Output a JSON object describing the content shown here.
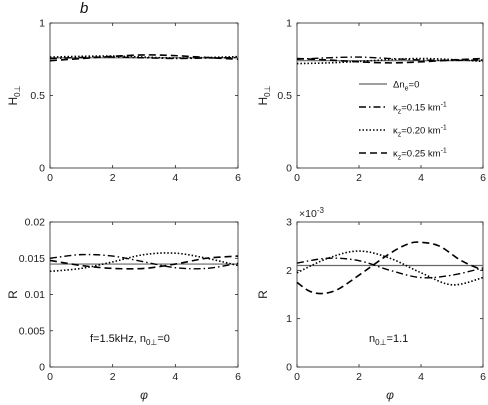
{
  "figure_label": "b",
  "chart_data": [
    {
      "type": "line",
      "id": "top-left",
      "ylabel": "H",
      "ylabel_sub": "0⊥",
      "xlim": [
        0,
        6
      ],
      "ylim": [
        0,
        1
      ],
      "xticks": [
        "0",
        "2",
        "4",
        "6"
      ],
      "yticks": [
        "0",
        "0.5",
        "1"
      ],
      "series": [
        {
          "style": "solid",
          "x": [
            0,
            1,
            2,
            3,
            4,
            5,
            6
          ],
          "y": [
            0.76,
            0.76,
            0.76,
            0.76,
            0.76,
            0.76,
            0.76
          ]
        },
        {
          "style": "dashdot",
          "x": [
            0,
            1,
            2,
            3,
            4,
            5,
            6
          ],
          "y": [
            0.755,
            0.762,
            0.765,
            0.76,
            0.755,
            0.758,
            0.762
          ]
        },
        {
          "style": "dotted",
          "x": [
            0,
            1,
            2,
            3,
            4,
            5,
            6
          ],
          "y": [
            0.765,
            0.77,
            0.772,
            0.765,
            0.758,
            0.762,
            0.768
          ]
        },
        {
          "style": "dashed",
          "x": [
            0,
            1,
            2,
            3,
            4,
            5,
            6
          ],
          "y": [
            0.74,
            0.755,
            0.77,
            0.78,
            0.775,
            0.762,
            0.75
          ]
        }
      ]
    },
    {
      "type": "line",
      "id": "top-right",
      "ylabel": "H",
      "ylabel_sub": "0⊥",
      "xlim": [
        0,
        6
      ],
      "ylim": [
        0,
        1
      ],
      "xticks": [
        "0",
        "2",
        "4",
        "6"
      ],
      "yticks": [
        "0",
        "0.5",
        "1"
      ],
      "legend": {
        "placement": "right",
        "entries": [
          {
            "style": "solid",
            "pre": "Δn",
            "sub": "e",
            "post": "=0",
            "sup": ""
          },
          {
            "style": "dashdot",
            "pre": "κ",
            "sub": "z",
            "post": "=0.15 km",
            "sup": "-1"
          },
          {
            "style": "dotted",
            "pre": "κ",
            "sub": "z",
            "post": "=0.20 km",
            "sup": "-1"
          },
          {
            "style": "dashed",
            "pre": "κ",
            "sub": "z",
            "post": "=0.25 km",
            "sup": "-1"
          }
        ]
      },
      "series": [
        {
          "style": "solid",
          "x": [
            0,
            1,
            2,
            3,
            4,
            5,
            6
          ],
          "y": [
            0.74,
            0.74,
            0.74,
            0.74,
            0.74,
            0.74,
            0.74
          ]
        },
        {
          "style": "dashdot",
          "x": [
            0,
            1,
            2,
            3,
            4,
            5,
            6
          ],
          "y": [
            0.75,
            0.76,
            0.765,
            0.755,
            0.745,
            0.742,
            0.745
          ]
        },
        {
          "style": "dotted",
          "x": [
            0,
            1,
            2,
            3,
            4,
            5,
            6
          ],
          "y": [
            0.72,
            0.725,
            0.735,
            0.748,
            0.755,
            0.748,
            0.735
          ]
        },
        {
          "style": "dashed",
          "x": [
            0,
            1,
            2,
            3,
            4,
            5,
            6
          ],
          "y": [
            0.755,
            0.745,
            0.732,
            0.725,
            0.732,
            0.745,
            0.755
          ]
        }
      ]
    },
    {
      "type": "line",
      "id": "bottom-left",
      "ylabel": "R",
      "xlabel": "φ",
      "xlim": [
        0,
        6
      ],
      "ylim": [
        0,
        0.02
      ],
      "xticks": [
        "0",
        "2",
        "4",
        "6"
      ],
      "yticks": [
        "0",
        "0.005",
        "0.01",
        "0.015",
        "0.02"
      ],
      "annotation": {
        "pre": "f=1.5kHz,  n",
        "sub": "0⊥",
        "post": "=0"
      },
      "series": [
        {
          "style": "solid",
          "x": [
            0,
            1,
            2,
            3,
            4,
            5,
            6
          ],
          "y": [
            0.0142,
            0.0142,
            0.0142,
            0.0142,
            0.0142,
            0.0142,
            0.0142
          ]
        },
        {
          "style": "dashdot",
          "x": [
            0,
            1,
            2,
            3,
            4,
            5,
            6
          ],
          "y": [
            0.015,
            0.0155,
            0.0153,
            0.0145,
            0.0137,
            0.0136,
            0.0143
          ]
        },
        {
          "style": "dotted",
          "x": [
            0,
            1,
            2,
            3,
            4,
            5,
            6
          ],
          "y": [
            0.0132,
            0.0136,
            0.0145,
            0.0155,
            0.0157,
            0.015,
            0.014
          ]
        },
        {
          "style": "dashed",
          "x": [
            0,
            1,
            2,
            3,
            4,
            5,
            6
          ],
          "y": [
            0.0147,
            0.014,
            0.0136,
            0.0136,
            0.0142,
            0.015,
            0.0153
          ]
        }
      ]
    },
    {
      "type": "line",
      "id": "bottom-right",
      "ylabel": "R",
      "xlabel": "φ",
      "xlim": [
        0,
        6
      ],
      "ylim": [
        0,
        0.003
      ],
      "xticks": [
        "0",
        "2",
        "4",
        "6"
      ],
      "yticks": [
        "0",
        "1",
        "2",
        "3"
      ],
      "yexponent": {
        "base": "×10",
        "exp": "-3"
      },
      "annotation": {
        "pre": "n",
        "sub": "0⊥",
        "post": "=1.1"
      },
      "series": [
        {
          "style": "solid",
          "x": [
            0,
            1,
            2,
            3,
            4,
            5,
            6
          ],
          "y": [
            0.0021,
            0.0021,
            0.0021,
            0.0021,
            0.0021,
            0.0021,
            0.0021
          ]
        },
        {
          "style": "dashdot",
          "x": [
            0,
            1,
            2,
            3,
            4,
            5,
            6
          ],
          "y": [
            0.00215,
            0.00225,
            0.0022,
            0.002,
            0.00185,
            0.0019,
            0.00205
          ]
        },
        {
          "style": "dotted",
          "x": [
            0,
            1,
            2,
            3,
            4,
            5,
            6
          ],
          "y": [
            0.00195,
            0.00225,
            0.0024,
            0.00225,
            0.00195,
            0.0017,
            0.00185
          ]
        },
        {
          "style": "dashed",
          "x": [
            0,
            0.4,
            0.8,
            1.3,
            2,
            3,
            3.6,
            4,
            4.6,
            5.3,
            6
          ],
          "y": [
            0.00175,
            0.00157,
            0.00152,
            0.0016,
            0.0019,
            0.00235,
            0.00255,
            0.00258,
            0.0025,
            0.0022,
            0.002
          ]
        }
      ]
    }
  ]
}
